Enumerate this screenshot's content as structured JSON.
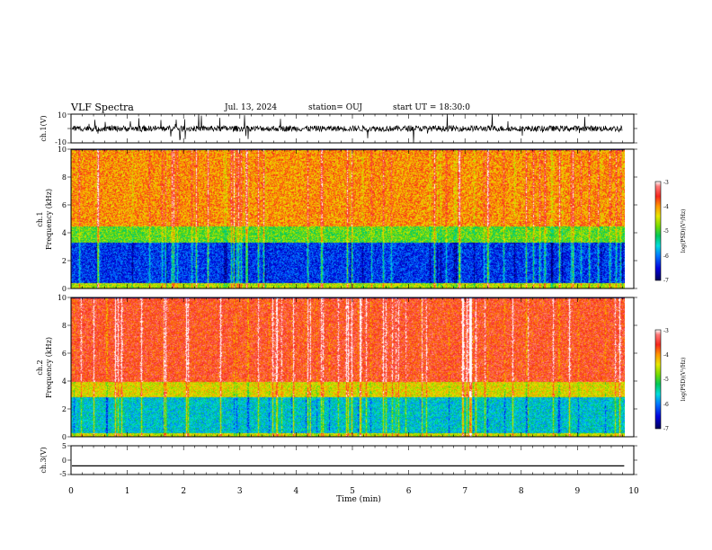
{
  "header": {
    "title": "VLF Spectra",
    "date": "Jul. 13, 2024",
    "station": "station= OUJ",
    "start": "start UT = 18:30:0"
  },
  "chart_data": [
    {
      "type": "line",
      "panel": "ch1-waveform",
      "ylabel": "ch.1(V)",
      "ylim": [
        -10,
        10
      ],
      "yticks": [
        "10",
        "-10"
      ],
      "xlim": [
        0,
        10
      ],
      "baseline": 0,
      "note_color": "#000000"
    },
    {
      "type": "heatmap",
      "panel": "ch1-spectrogram",
      "ylabel_line1": "ch.1",
      "ylabel_line2": "Frequency (kHz)",
      "ylim": [
        0,
        10
      ],
      "yticks": [
        "0",
        "2",
        "4",
        "6",
        "8",
        "10"
      ],
      "xlim": [
        0,
        9.83
      ],
      "bands": [
        {
          "from": 0,
          "to": 0.4,
          "level": -4.6
        },
        {
          "from": 0.4,
          "to": 3.3,
          "level": -6.3
        },
        {
          "from": 3.3,
          "to": 4.5,
          "level": -4.9
        },
        {
          "from": 4.5,
          "to": 10,
          "level": -4.0
        }
      ],
      "colorbar": {
        "label": "log(PSD)(V²/Hz)",
        "ticks": [
          "-3",
          "-4",
          "-5",
          "-6",
          "-7"
        ],
        "range": [
          -7,
          -3
        ]
      }
    },
    {
      "type": "heatmap",
      "panel": "ch2-spectrogram",
      "ylabel_line1": "ch.2",
      "ylabel_line2": "Frequency (kHz)",
      "ylim": [
        0,
        10
      ],
      "yticks": [
        "0",
        "2",
        "4",
        "6",
        "8",
        "10"
      ],
      "xlim": [
        0,
        9.83
      ],
      "bands": [
        {
          "from": 0,
          "to": 0.3,
          "level": -4.5
        },
        {
          "from": 0.3,
          "to": 2.9,
          "level": -5.6
        },
        {
          "from": 2.9,
          "to": 4.0,
          "level": -4.4
        },
        {
          "from": 4.0,
          "to": 10,
          "level": -3.6
        }
      ],
      "colorbar": {
        "label": "log(PSD)(V²/Hz)",
        "ticks": [
          "-3",
          "-4",
          "-5",
          "-6",
          "-7"
        ],
        "range": [
          -7,
          -3
        ]
      }
    },
    {
      "type": "line",
      "panel": "ch3-waveform",
      "ylabel": "ch.3(V)",
      "ylim": [
        -5,
        5
      ],
      "yticks": [
        "5",
        "0",
        "-5"
      ],
      "x": [
        0,
        9.83
      ],
      "values": [
        -2,
        -2
      ],
      "xlabel": "Time (min)",
      "xlim": [
        0,
        10
      ],
      "xticks": [
        "0",
        "1",
        "2",
        "3",
        "4",
        "5",
        "6",
        "7",
        "8",
        "9",
        "10"
      ]
    }
  ]
}
